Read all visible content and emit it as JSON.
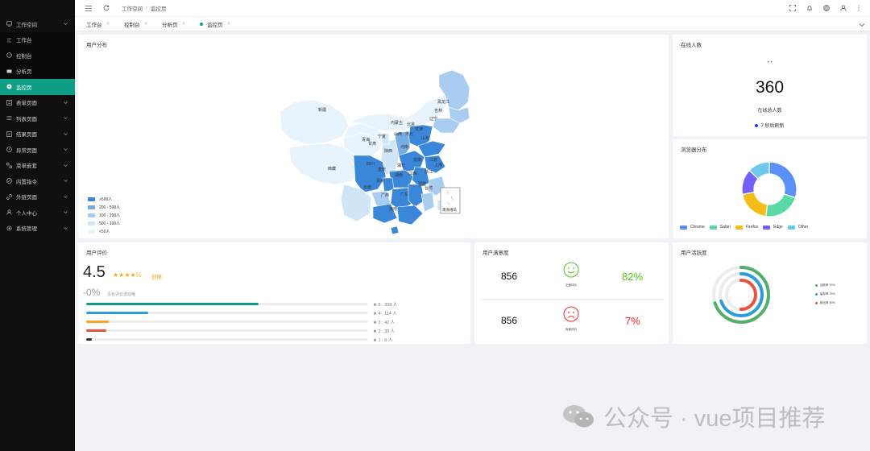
{
  "sidebar": {
    "items": [
      {
        "label": "工作空间",
        "icon": "desktop-icon",
        "chevron": true,
        "sub": false,
        "active": false
      },
      {
        "label": "工作台",
        "icon": "dashboard-icon",
        "chevron": false,
        "sub": true,
        "active": false
      },
      {
        "label": "控制台",
        "icon": "console-icon",
        "chevron": false,
        "sub": true,
        "active": false
      },
      {
        "label": "分析页",
        "icon": "chart-icon",
        "chevron": false,
        "sub": true,
        "active": false
      },
      {
        "label": "监控页",
        "icon": "monitor-icon",
        "chevron": false,
        "sub": true,
        "active": true
      },
      {
        "label": "表单页面",
        "icon": "form-icon",
        "chevron": true,
        "sub": false,
        "active": false
      },
      {
        "label": "列表页面",
        "icon": "list-icon",
        "chevron": true,
        "sub": false,
        "active": false
      },
      {
        "label": "结果页面",
        "icon": "result-icon",
        "chevron": true,
        "sub": false,
        "active": false
      },
      {
        "label": "异常页面",
        "icon": "warning-icon",
        "chevron": true,
        "sub": false,
        "active": false
      },
      {
        "label": "菜单嵌套",
        "icon": "nested-menu-icon",
        "chevron": true,
        "sub": false,
        "active": false
      },
      {
        "label": "内置指令",
        "icon": "directive-icon",
        "chevron": true,
        "sub": false,
        "active": false
      },
      {
        "label": "外链页面",
        "icon": "link-icon",
        "chevron": true,
        "sub": false,
        "active": false
      },
      {
        "label": "个人中心",
        "icon": "user-icon",
        "chevron": true,
        "sub": false,
        "active": false
      },
      {
        "label": "系统管理",
        "icon": "settings-icon",
        "chevron": true,
        "sub": false,
        "active": false
      }
    ]
  },
  "header": {
    "breadcrumb": [
      "工作空间",
      "监控页"
    ],
    "sep": "/"
  },
  "tabs": [
    {
      "label": "工作台",
      "active": false
    },
    {
      "label": "控制台",
      "active": false
    },
    {
      "label": "分析页",
      "active": false
    },
    {
      "label": "监控页",
      "active": true
    }
  ],
  "map_card": {
    "title": "用户分布",
    "legend": [
      {
        "label": ">500人",
        "color": "#3a86d8"
      },
      {
        "label": "200 - 500人",
        "color": "#77ace5"
      },
      {
        "label": "100 - 200人",
        "color": "#a9cdf0"
      },
      {
        "label": "500 - 100人",
        "color": "#d0e6f6"
      },
      {
        "label": "<50人",
        "color": "#e8f3fb"
      }
    ],
    "regions": [
      "新疆",
      "西藏",
      "青海",
      "甘肃",
      "宁夏",
      "内蒙古",
      "黑龙江",
      "吉林",
      "辽宁",
      "北京",
      "天津",
      "河北",
      "山西",
      "陕西",
      "山东",
      "河南",
      "江苏",
      "安徽",
      "上海",
      "浙江",
      "湖北",
      "四川",
      "重庆",
      "湖南",
      "江西",
      "福建",
      "贵州",
      "云南",
      "广西",
      "广东",
      "海南",
      "台湾"
    ],
    "inset": "南海诸岛"
  },
  "online_card": {
    "title": "在线人数",
    "small": "• •",
    "count": "360",
    "label": "在线总人数",
    "refresh": "7 秒后刷新"
  },
  "browser_card": {
    "title": "浏览器分布",
    "slices": [
      {
        "name": "Chrome",
        "value": 30,
        "color": "#5b8ff9"
      },
      {
        "name": "Safari",
        "value": 22,
        "color": "#5ad8a6"
      },
      {
        "name": "Firefox",
        "value": 20,
        "color": "#f6bd16"
      },
      {
        "name": "Edge",
        "value": 15,
        "color": "#7262fd"
      },
      {
        "name": "Other",
        "value": 13,
        "color": "#6dc8ec"
      }
    ]
  },
  "rating_card": {
    "title": "用户评价",
    "score": "4.5",
    "stars": "★★★★½",
    "praise": "很棒",
    "change": "-0%",
    "change_note": "没有评价波动哦",
    "bars": [
      {
        "label": "★ 5 : 308 人",
        "fraction": 0.61,
        "color": "#0e9e86"
      },
      {
        "label": "★ 4 : 114 人",
        "fraction": 0.22,
        "color": "#2d9cdb"
      },
      {
        "label": "★ 3 : 42 人",
        "fraction": 0.08,
        "color": "#f5a623"
      },
      {
        "label": "★ 2 : 30 人",
        "fraction": 0.07,
        "color": "#e8533f"
      },
      {
        "label": "★ 1 : 8 人",
        "fraction": 0.02,
        "color": "#333333"
      }
    ]
  },
  "satisfaction_card": {
    "title": "用户满意度",
    "rows": [
      {
        "count": "856",
        "face": "smile-icon",
        "face_label": "正面评价",
        "percent": "82%",
        "color": "#52c41a"
      },
      {
        "count": "856",
        "face": "frown-icon",
        "face_label": "负面评价",
        "percent": "7%",
        "color": "#f5222d"
      }
    ]
  },
  "activity_card": {
    "title": "用户活跃度",
    "rings": [
      {
        "label": "活跃率 70%",
        "fraction": 0.7,
        "color": "#52b06a"
      },
      {
        "label": "留存率 70%",
        "fraction": 0.7,
        "color": "#2d9cdb"
      },
      {
        "label": "跳出率 50%",
        "fraction": 0.5,
        "color": "#e8533f"
      }
    ]
  },
  "watermark": {
    "text": "公众号 · vue项目推荐"
  }
}
